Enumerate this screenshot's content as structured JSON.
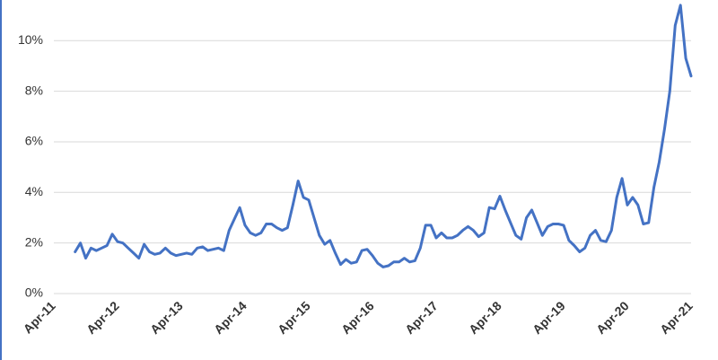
{
  "chart_data": {
    "type": "line",
    "categories": [
      "Apr-11",
      null,
      null,
      null,
      null,
      null,
      null,
      null,
      null,
      null,
      null,
      null,
      "Apr-12",
      null,
      null,
      null,
      null,
      null,
      null,
      null,
      null,
      null,
      null,
      null,
      "Apr-13",
      null,
      null,
      null,
      null,
      null,
      null,
      null,
      null,
      null,
      null,
      null,
      "Apr-14",
      null,
      null,
      null,
      null,
      null,
      null,
      null,
      null,
      null,
      null,
      null,
      "Apr-15",
      null,
      null,
      null,
      null,
      null,
      null,
      null,
      null,
      null,
      null,
      null,
      "Apr-16",
      null,
      null,
      null,
      null,
      null,
      null,
      null,
      null,
      null,
      null,
      null,
      "Apr-17",
      null,
      null,
      null,
      null,
      null,
      null,
      null,
      null,
      null,
      null,
      null,
      "Apr-18",
      null,
      null,
      null,
      null,
      null,
      null,
      null,
      null,
      null,
      null,
      null,
      "Apr-19",
      null,
      null,
      null,
      null,
      null,
      null,
      null,
      null,
      null,
      null,
      null,
      "Apr-20",
      null,
      null,
      null,
      null,
      null,
      null,
      null,
      null,
      null,
      null,
      null,
      "Apr-21"
    ],
    "values": [
      null,
      null,
      null,
      null,
      1.65,
      2.0,
      1.4,
      1.8,
      1.7,
      1.8,
      1.9,
      2.35,
      2.05,
      2.0,
      1.8,
      1.6,
      1.4,
      1.95,
      1.65,
      1.55,
      1.6,
      1.8,
      1.6,
      1.5,
      1.55,
      1.6,
      1.55,
      1.8,
      1.85,
      1.7,
      1.75,
      1.8,
      1.7,
      2.5,
      2.95,
      3.4,
      2.7,
      2.4,
      2.3,
      2.4,
      2.75,
      2.75,
      2.6,
      2.5,
      2.6,
      3.5,
      4.45,
      3.8,
      3.7,
      3.0,
      2.3,
      1.95,
      2.1,
      1.6,
      1.15,
      1.35,
      1.2,
      1.25,
      1.7,
      1.75,
      1.5,
      1.2,
      1.05,
      1.1,
      1.25,
      1.25,
      1.4,
      1.25,
      1.3,
      1.8,
      2.7,
      2.7,
      2.2,
      2.4,
      2.2,
      2.2,
      2.3,
      2.5,
      2.65,
      2.5,
      2.25,
      2.4,
      3.4,
      3.35,
      3.85,
      3.3,
      2.8,
      2.3,
      2.15,
      3.0,
      3.3,
      2.8,
      2.3,
      2.65,
      2.75,
      2.75,
      2.7,
      2.1,
      1.9,
      1.65,
      1.8,
      2.3,
      2.5,
      2.1,
      2.05,
      2.5,
      3.8,
      4.55,
      3.5,
      3.8,
      3.5,
      2.75,
      2.8,
      4.2,
      5.2,
      6.5,
      8.0,
      10.6,
      11.4,
      9.3,
      8.6
    ],
    "color": "#4472c4",
    "ylim": [
      0,
      11.5
    ],
    "yticks": [
      {
        "value": 0,
        "label": "0%"
      },
      {
        "value": 2,
        "label": "2%"
      },
      {
        "value": 4,
        "label": "4%"
      },
      {
        "value": 6,
        "label": "6%"
      },
      {
        "value": 8,
        "label": "8%"
      },
      {
        "value": 10,
        "label": "10%"
      }
    ],
    "grid": true
  }
}
